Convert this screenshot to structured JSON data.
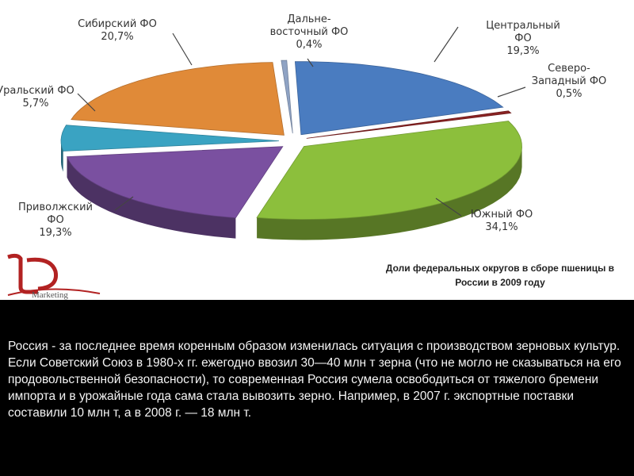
{
  "chart_data": {
    "type": "pie",
    "style": "3d-exploded",
    "title": "Доли федеральных округов в сборе пшеницы в России в 2009 году",
    "slices": [
      {
        "name": "Дальне-восточный ФО",
        "label_lines": [
          "Дальне-",
          "восточный ФО"
        ],
        "value": 0.4,
        "value_text": "0,4%",
        "color": "#8fa3c4"
      },
      {
        "name": "Центральный ФО",
        "label_lines": [
          "Центральный",
          "ФО"
        ],
        "value": 19.3,
        "value_text": "19,3%",
        "color": "#4a7cc0"
      },
      {
        "name": "Северо-Западный ФО",
        "label_lines": [
          "Северо-",
          "Западный ФО"
        ],
        "value": 0.5,
        "value_text": "0,5%",
        "color": "#8b2323"
      },
      {
        "name": "Южный ФО",
        "label_lines": [
          "Южный ФО"
        ],
        "value": 34.1,
        "value_text": "34,1%",
        "color": "#8cbf3c"
      },
      {
        "name": "Приволжский ФО",
        "label_lines": [
          "Приволжский",
          "ФО"
        ],
        "value": 19.3,
        "value_text": "19,3%",
        "color": "#7a50a0"
      },
      {
        "name": "Уральский ФО",
        "label_lines": [
          "Уральский ФО"
        ],
        "value": 5.7,
        "value_text": "5,7%",
        "color": "#3aa3c2"
      },
      {
        "name": "Сибирский ФО",
        "label_lines": [
          "Сибирский ФО"
        ],
        "value": 20.7,
        "value_text": "20,7%",
        "color": "#e08a38"
      }
    ]
  },
  "logo": {
    "letters": "LD",
    "word": "Marketing"
  },
  "caption": {
    "line1": "Доли федеральных округов в сборе пшеницы в",
    "line2": "России в 2009 году"
  },
  "body": {
    "paragraph1": "Россия  - за последнее время коренным образом изменилась ситуация с производством зерновых культур.",
    "paragraph2": "Если Советский Союз в 1980-х гг. ежегодно ввозил 30—40 млн т зерна (что не могло не сказываться на его продовольственной безопасности), то современная Россия сумела освободиться от тяжелого бремени импорта и в урожайные года сама стала вывозить зерно. Например, в 2007 г. экспортные поставки составили 10 млн т, а в 2008 г. — 18 млн т."
  }
}
